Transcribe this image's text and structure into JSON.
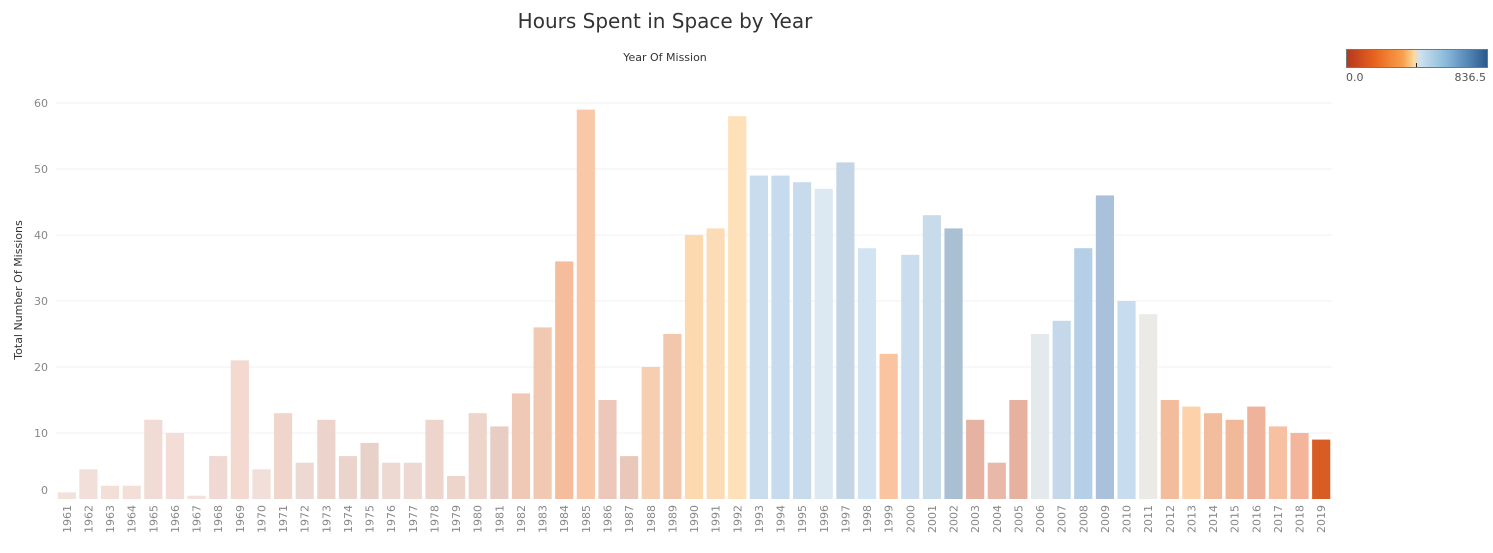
{
  "chart_data": {
    "type": "bar",
    "title": "Hours Spent in Space by Year",
    "subtitle": "Year Of Mission",
    "xlabel": "",
    "ylabel": "Total Number Of Missions",
    "ylim": [
      0,
      60
    ],
    "yticks": [
      0,
      10,
      20,
      30,
      40,
      50,
      60
    ],
    "grid": true,
    "legend": {
      "type": "color-gradient",
      "placement": "top-right",
      "min_label": "0.0",
      "max_label": "836.5"
    },
    "categories": [
      "1961",
      "1962",
      "1963",
      "1964",
      "1965",
      "1966",
      "1967",
      "1968",
      "1969",
      "1970",
      "1971",
      "1972",
      "1973",
      "1974",
      "1975",
      "1976",
      "1977",
      "1978",
      "1979",
      "1980",
      "1981",
      "1982",
      "1983",
      "1984",
      "1985",
      "1986",
      "1987",
      "1988",
      "1989",
      "1990",
      "1991",
      "1992",
      "1993",
      "1994",
      "1995",
      "1996",
      "1997",
      "1998",
      "1999",
      "2000",
      "2001",
      "2002",
      "2003",
      "2004",
      "2005",
      "2006",
      "2007",
      "2008",
      "2009",
      "2010",
      "2011",
      "2012",
      "2013",
      "2014",
      "2015",
      "2016",
      "2017",
      "2018",
      "2019"
    ],
    "values": [
      1,
      4.5,
      2,
      2,
      12,
      10,
      0.5,
      6.5,
      21,
      4.5,
      13,
      5.5,
      12,
      6.5,
      8.5,
      5.5,
      5.5,
      12,
      3.5,
      13,
      11,
      16,
      26,
      36,
      59,
      15,
      6.5,
      20,
      25,
      40,
      41,
      58,
      49,
      49,
      48,
      47,
      51,
      38,
      22,
      37,
      43,
      41,
      12,
      5.5,
      15,
      25,
      27,
      38,
      46,
      30,
      28,
      15,
      14,
      13,
      12,
      14,
      11,
      10,
      9
    ],
    "colors": [
      "#f3e1dc",
      "#f2dfd9",
      "#f3dfd8",
      "#f3dfd8",
      "#f0dbd5",
      "#f3ddd6",
      "#f3e1dc",
      "#efd9d2",
      "#f3d9d0",
      "#f2dfd9",
      "#efd5cc",
      "#eed9d2",
      "#ecd3cb",
      "#ead4cc",
      "#e8d1c9",
      "#eed9d2",
      "#eed9d2",
      "#eed5cc",
      "#eed5cc",
      "#eed5cc",
      "#e8cdc4",
      "#f0c9b6",
      "#f1c8b1",
      "#f5bd9c",
      "#f9c8a8",
      "#edc7b9",
      "#e9c8bb",
      "#f6cfb2",
      "#f3c7ab",
      "#fdd9b0",
      "#fcdcb6",
      "#fee1b8",
      "#c8dced",
      "#c6dbed",
      "#c8dbec",
      "#dce9f3",
      "#c4d5e6",
      "#d2e4f2",
      "#f9c49f",
      "#c9ddef",
      "#c7dbeb",
      "#a9bfd2",
      "#e6b2a2",
      "#eab8a8",
      "#e6b29f",
      "#e4e9eb",
      "#c4d8ea",
      "#b5cfe6",
      "#a9c1db",
      "#c7dcee",
      "#ebeae6",
      "#f3bc9d",
      "#fdd1a9",
      "#f3bc9c",
      "#f2b89a",
      "#eeb39a",
      "#f7c1a1",
      "#f3b69c",
      "#d85d24"
    ]
  }
}
